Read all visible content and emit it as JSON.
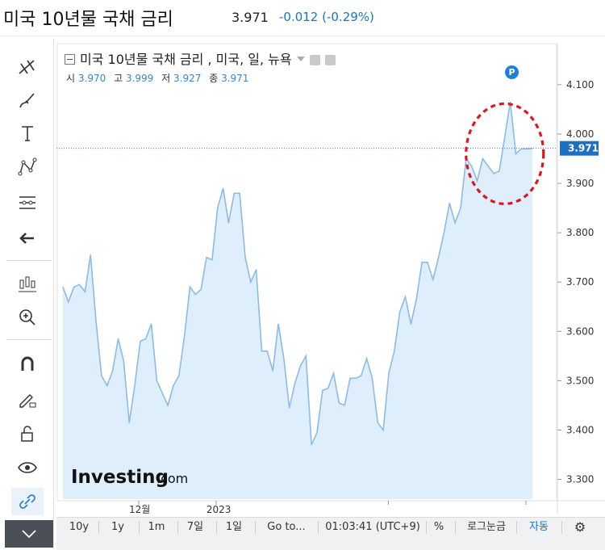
{
  "header": {
    "title": "미국 10년물 국채 금리",
    "price": "3.971",
    "change": "-0.012 (-0.29%)"
  },
  "legend": {
    "symbol": "미국 10년물 국채 금리 , 미국, 일, 뉴욕",
    "open_label": "시",
    "open": "3.970",
    "high_label": "고",
    "high": "3.999",
    "low_label": "저",
    "low": "3.927",
    "close_label": "종",
    "close": "3.971"
  },
  "badge": "P",
  "watermark": {
    "brand": "Investing",
    "suffix": ".com"
  },
  "price_label": "3.971",
  "toolbar": {
    "icons": [
      "crosshair-lines-icon",
      "brush-icon",
      "text-icon",
      "pattern-icon",
      "measure-icon",
      "back-arrow-icon",
      "candles-icon",
      "zoom-in-icon",
      "magnet-icon",
      "lock-pencil-icon",
      "unlock-icon",
      "eye-icon",
      "link-icon",
      "chevron-down-icon"
    ]
  },
  "bottombar": {
    "items": [
      "10y",
      "1y",
      "1m",
      "7일",
      "1일",
      "Go to...",
      "01:03:41 (UTC+9)",
      "%",
      "로그눈금",
      "자동"
    ]
  },
  "colors": {
    "line": "#8bbbe8",
    "fill": "#deeefa",
    "accent": "#1a73c7",
    "annotation": "#e0141e"
  },
  "chart_data": {
    "type": "area",
    "x_tick_labels": [
      "12월",
      "2023"
    ],
    "y_ticks": [
      3.3,
      3.4,
      3.5,
      3.6,
      3.7,
      3.8,
      3.9,
      4.0,
      4.1
    ],
    "y_tick_labels": [
      "3.300",
      "3.400",
      "3.500",
      "3.600",
      "3.700",
      "3.800",
      "3.900",
      "4.000",
      "4.100"
    ],
    "ylim": [
      3.26,
      4.18
    ],
    "current_value": 3.971,
    "values": [
      3.69,
      3.66,
      3.69,
      3.695,
      3.68,
      3.755,
      3.62,
      3.51,
      3.49,
      3.52,
      3.585,
      3.54,
      3.415,
      3.49,
      3.58,
      3.585,
      3.615,
      3.5,
      3.475,
      3.45,
      3.49,
      3.51,
      3.59,
      3.69,
      3.675,
      3.685,
      3.75,
      3.745,
      3.85,
      3.89,
      3.82,
      3.88,
      3.88,
      3.75,
      3.7,
      3.725,
      3.56,
      3.56,
      3.52,
      3.615,
      3.545,
      3.445,
      3.495,
      3.53,
      3.55,
      3.37,
      3.395,
      3.48,
      3.485,
      3.515,
      3.455,
      3.45,
      3.505,
      3.505,
      3.51,
      3.545,
      3.505,
      3.415,
      3.4,
      3.515,
      3.56,
      3.64,
      3.67,
      3.615,
      3.665,
      3.74,
      3.74,
      3.705,
      3.75,
      3.8,
      3.86,
      3.82,
      3.85,
      3.95,
      3.935,
      3.905,
      3.95,
      3.935,
      3.92,
      3.925,
      3.995,
      4.065,
      3.96,
      3.97,
      3.97,
      3.971
    ],
    "xlabel": "",
    "ylabel": ""
  }
}
